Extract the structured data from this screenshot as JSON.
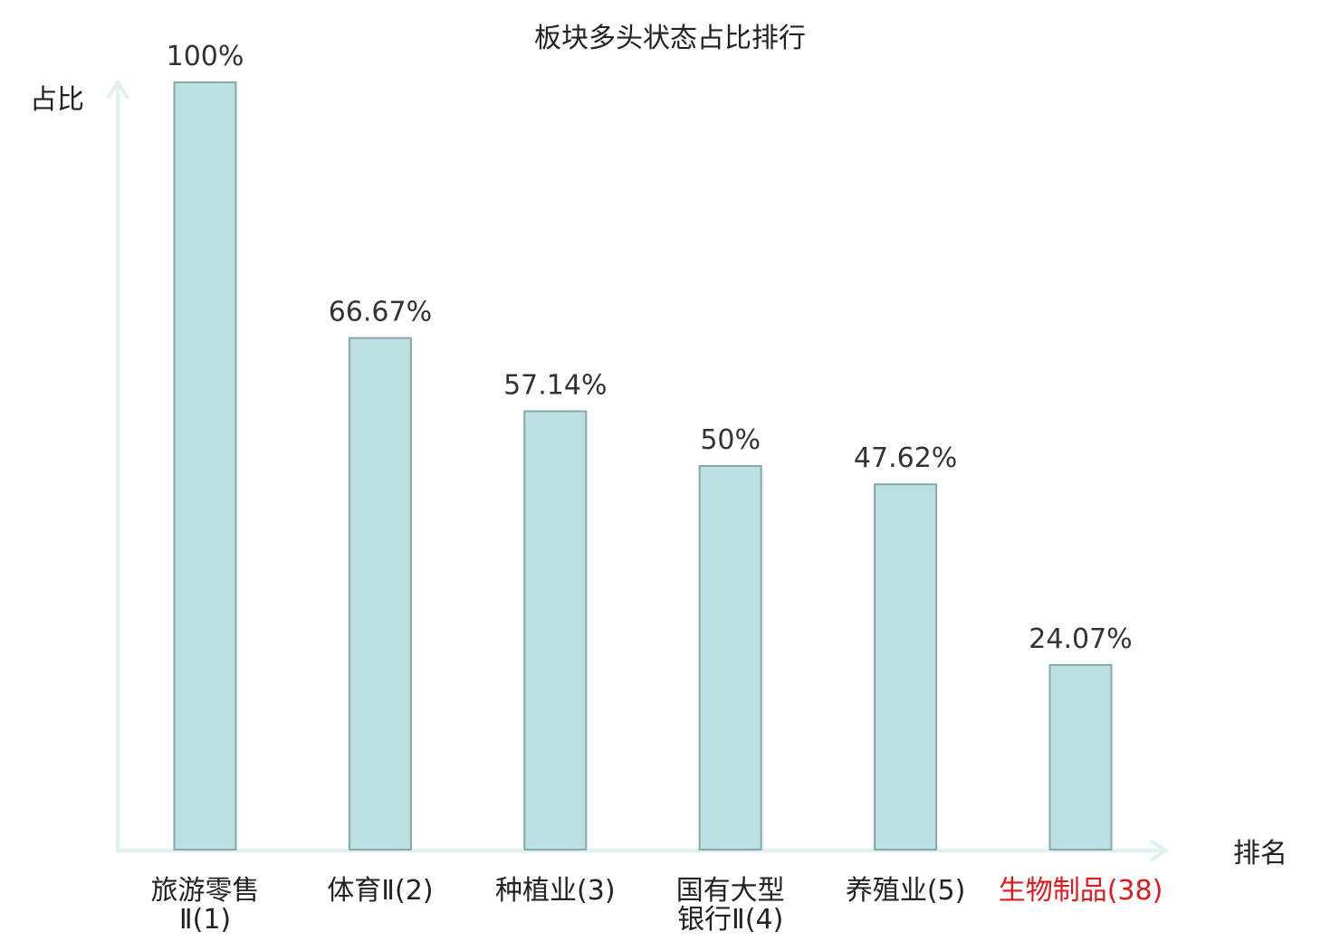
{
  "chart_data": {
    "type": "bar",
    "title": "板块多头状态占比排行",
    "xlabel": "排名",
    "ylabel": "占比",
    "ylim": [
      0,
      100
    ],
    "grid": false,
    "categories": [
      {
        "name": [
          "旅游零售",
          "Ⅱ"
        ],
        "rank": "1",
        "highlight": false
      },
      {
        "name": [
          "体育Ⅱ"
        ],
        "rank": "2",
        "highlight": false
      },
      {
        "name": [
          "种植业"
        ],
        "rank": "3",
        "highlight": false
      },
      {
        "name": [
          "国有大型",
          "银行Ⅱ"
        ],
        "rank": "4",
        "highlight": false
      },
      {
        "name": [
          "养殖业"
        ],
        "rank": "5",
        "highlight": false
      },
      {
        "name": [
          "生物制品"
        ],
        "rank": "38",
        "highlight": true
      }
    ],
    "values": [
      100,
      66.67,
      57.14,
      50,
      47.62,
      24.07
    ],
    "value_labels": [
      "100%",
      "66.67%",
      "57.14%",
      "50%",
      "47.62%",
      "24.07%"
    ]
  },
  "colors": {
    "bar_fill": "#bce0e2",
    "bar_stroke": "#86a9ab",
    "axis": "#e0f2ef",
    "text": "#222222",
    "highlight": "#e0181b"
  }
}
